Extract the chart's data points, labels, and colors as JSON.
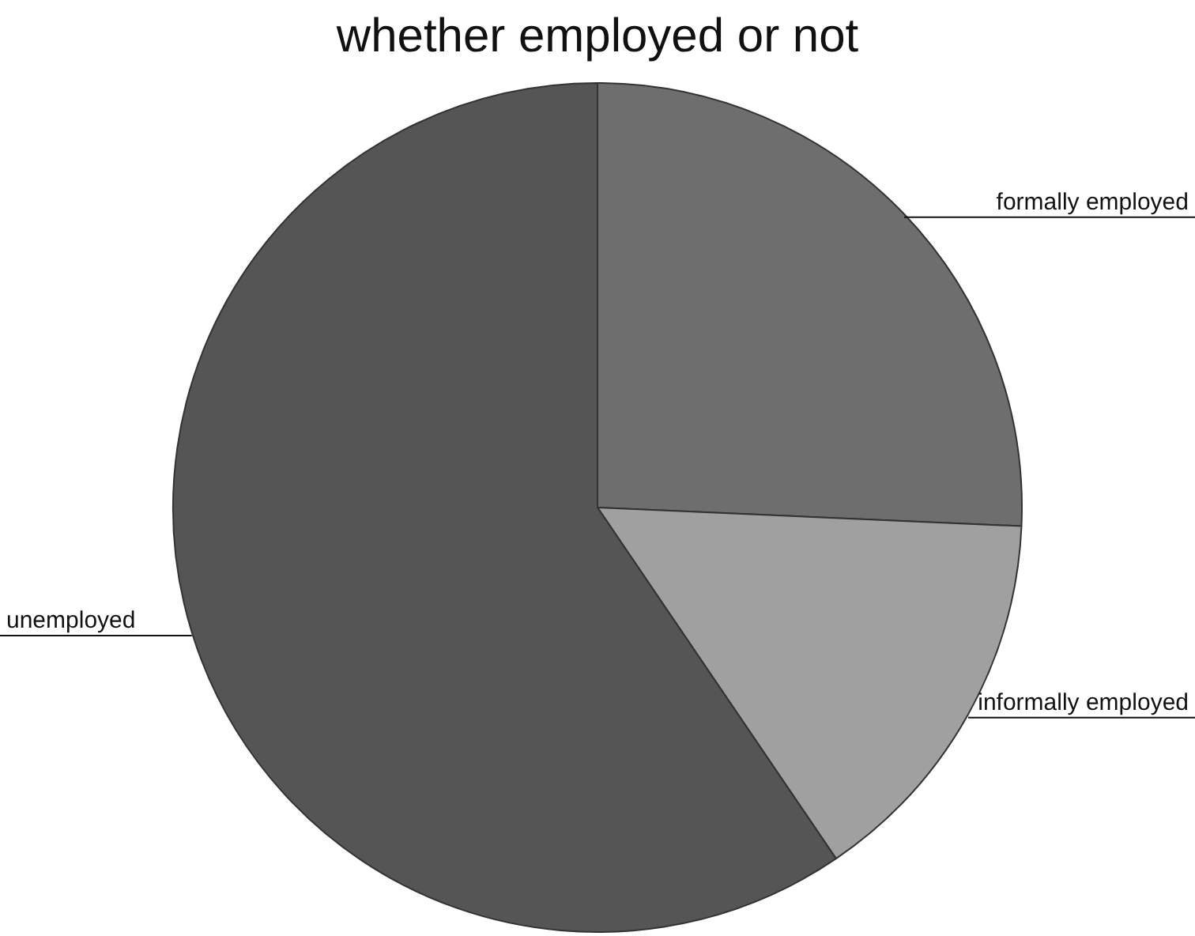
{
  "chart_data": {
    "type": "pie",
    "title": "whether employed or not",
    "categories": [
      "formally employed",
      "informally employed",
      "unemployed"
    ],
    "values": [
      25.7,
      14.8,
      59.5
    ],
    "colors": [
      "#6e6e6e",
      "#a0a0a0",
      "#555555"
    ],
    "legend": false
  }
}
